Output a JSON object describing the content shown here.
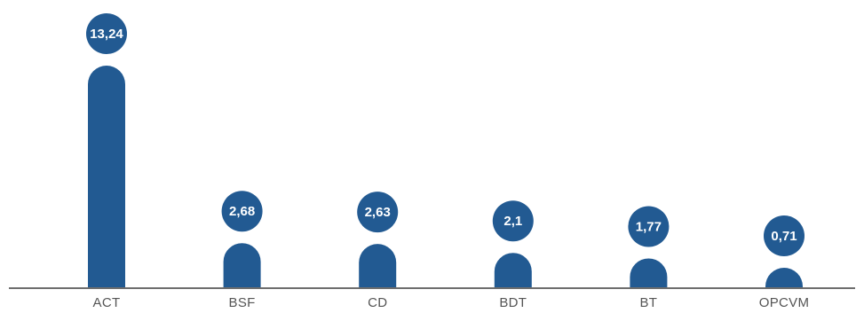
{
  "chart_data": {
    "type": "bar",
    "categories": [
      "ACT",
      "BSF",
      "CD",
      "BDT",
      "BT",
      "OPCVM"
    ],
    "values": [
      13.24,
      2.68,
      2.63,
      2.1,
      1.77,
      0.71
    ],
    "value_labels": [
      "13,24",
      "2,68",
      "2,63",
      "2,1",
      "1,77",
      "0,71"
    ],
    "title": "",
    "xlabel": "",
    "ylabel": "",
    "ylim": [
      0,
      13.24
    ],
    "grid": false,
    "bar_color": "#225a92",
    "label_color": "#ffffff"
  }
}
